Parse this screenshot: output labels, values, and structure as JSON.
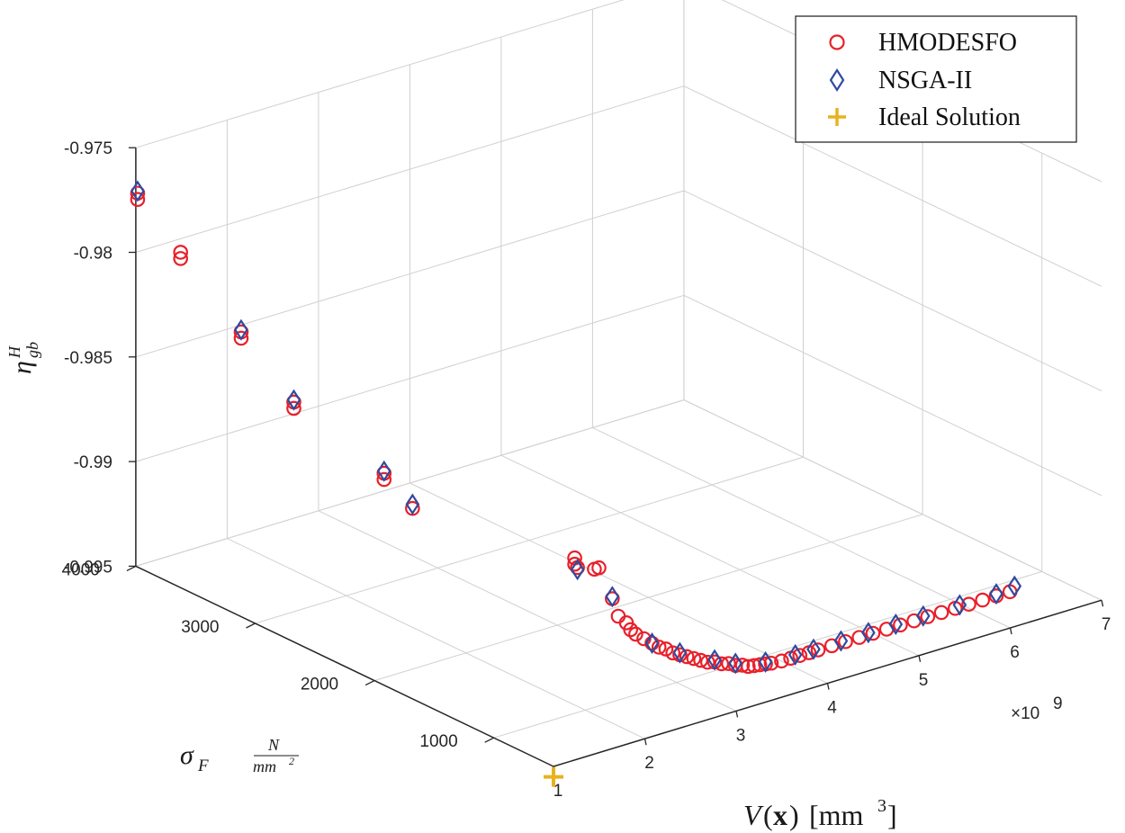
{
  "chart_data": {
    "type": "scatter",
    "projection": "3d",
    "axes": {
      "x": {
        "label_symbol": "V",
        "label_arg": "x",
        "label_unit_base": "[mm",
        "label_unit_exp": "3",
        "label_unit_close": "]",
        "range": [
          1,
          7
        ],
        "ticks": [
          1,
          2,
          3,
          4,
          5,
          6,
          7
        ],
        "tick_labels": [
          "1",
          "2",
          "3",
          "4",
          "5",
          "6",
          "7"
        ],
        "exponent_label": "×10",
        "exponent_power": "9"
      },
      "y": {
        "label_symbol": "σ",
        "label_subscript": "F",
        "label_unit_num": "N",
        "label_unit_den": "mm",
        "label_unit_den_exp": "2",
        "range": [
          500,
          4000
        ],
        "ticks": [
          1000,
          2000,
          3000,
          4000
        ],
        "tick_labels": [
          "1000",
          "2000",
          "3000",
          "4000"
        ]
      },
      "z": {
        "label_symbol": "η",
        "label_subscript": "gb",
        "label_superscript": "H",
        "range": [
          -0.995,
          -0.975
        ],
        "ticks": [
          -0.995,
          -0.99,
          -0.985,
          -0.98,
          -0.975
        ],
        "tick_labels": [
          "-0.995",
          "-0.99",
          "-0.985",
          "-0.98",
          "-0.975"
        ]
      }
    },
    "grid": true,
    "legend_position": "top-right",
    "series": [
      {
        "name": "HMODESFO",
        "marker": "circle",
        "color": "#e8202a",
        "points": [
          [
            1.02,
            4000,
            -0.9772
          ],
          [
            1.02,
            4000,
            -0.9775
          ],
          [
            1.36,
            3900,
            -0.9802
          ],
          [
            1.36,
            3900,
            -0.9805
          ],
          [
            1.5,
            3500,
            -0.9831
          ],
          [
            1.5,
            3500,
            -0.9834
          ],
          [
            1.75,
            3250,
            -0.9861
          ],
          [
            1.75,
            3250,
            -0.9864
          ],
          [
            2.15,
            2800,
            -0.9888
          ],
          [
            2.15,
            2800,
            -0.9891
          ],
          [
            2.2,
            2600,
            -0.99
          ],
          [
            2.8,
            1700,
            -0.9907
          ],
          [
            2.8,
            1700,
            -0.991
          ],
          [
            2.83,
            1700,
            -0.9912
          ],
          [
            2.95,
            1650,
            -0.9913
          ],
          [
            3.0,
            1650,
            -0.9913
          ],
          [
            2.95,
            1500,
            -0.9923
          ],
          [
            2.95,
            1450,
            -0.993
          ],
          [
            3.0,
            1420,
            -0.9933
          ],
          [
            3.02,
            1400,
            -0.9936
          ],
          [
            3.05,
            1380,
            -0.9938
          ],
          [
            3.1,
            1350,
            -0.994
          ],
          [
            3.15,
            1320,
            -0.9942
          ],
          [
            3.2,
            1300,
            -0.9944
          ],
          [
            3.25,
            1280,
            -0.9945
          ],
          [
            3.3,
            1260,
            -0.9947
          ],
          [
            3.35,
            1240,
            -0.9948
          ],
          [
            3.4,
            1220,
            -0.9949
          ],
          [
            3.45,
            1200,
            -0.995
          ],
          [
            3.5,
            1180,
            -0.9951
          ],
          [
            3.55,
            1160,
            -0.9952
          ],
          [
            3.6,
            1140,
            -0.9952
          ],
          [
            3.65,
            1120,
            -0.9953
          ],
          [
            3.7,
            1100,
            -0.9953
          ],
          [
            3.75,
            1080,
            -0.9954
          ],
          [
            3.8,
            1060,
            -0.9954
          ],
          [
            3.85,
            1050,
            -0.9955
          ],
          [
            3.9,
            1040,
            -0.9955
          ],
          [
            3.95,
            1030,
            -0.9955
          ],
          [
            4.0,
            1020,
            -0.9955
          ],
          [
            4.05,
            1010,
            -0.9955
          ],
          [
            4.15,
            1000,
            -0.9955
          ],
          [
            4.25,
            1000,
            -0.9955
          ],
          [
            4.35,
            1000,
            -0.9955
          ],
          [
            4.45,
            1000,
            -0.9955
          ],
          [
            4.55,
            1000,
            -0.9955
          ],
          [
            4.7,
            1000,
            -0.9955
          ],
          [
            4.85,
            1000,
            -0.9955
          ],
          [
            5.0,
            1000,
            -0.9955
          ],
          [
            5.15,
            1000,
            -0.9955
          ],
          [
            5.3,
            1000,
            -0.9955
          ],
          [
            5.45,
            1000,
            -0.9955
          ],
          [
            5.6,
            1000,
            -0.9955
          ],
          [
            5.75,
            1000,
            -0.9955
          ],
          [
            5.9,
            1000,
            -0.9955
          ],
          [
            6.05,
            1000,
            -0.9955
          ],
          [
            6.2,
            1000,
            -0.9955
          ],
          [
            6.35,
            1000,
            -0.9955
          ],
          [
            6.5,
            1000,
            -0.9955
          ],
          [
            6.65,
            1000,
            -0.9955
          ]
        ]
      },
      {
        "name": "NSGA-II",
        "marker": "diamond",
        "color": "#2f4aa0",
        "points": [
          [
            1.02,
            4000,
            -0.9771
          ],
          [
            1.5,
            3500,
            -0.983
          ],
          [
            1.75,
            3250,
            -0.986
          ],
          [
            2.15,
            2800,
            -0.9887
          ],
          [
            2.2,
            2600,
            -0.9898
          ],
          [
            2.83,
            1700,
            -0.9913
          ],
          [
            2.95,
            1500,
            -0.9922
          ],
          [
            3.15,
            1320,
            -0.9942
          ],
          [
            3.35,
            1240,
            -0.9947
          ],
          [
            3.6,
            1140,
            -0.9951
          ],
          [
            3.75,
            1080,
            -0.9953
          ],
          [
            4.0,
            1020,
            -0.9954
          ],
          [
            4.3,
            1000,
            -0.9954
          ],
          [
            4.5,
            1000,
            -0.9954
          ],
          [
            4.8,
            1000,
            -0.9954
          ],
          [
            5.1,
            1000,
            -0.9954
          ],
          [
            5.4,
            1000,
            -0.9954
          ],
          [
            5.7,
            1000,
            -0.9954
          ],
          [
            6.1,
            1000,
            -0.9954
          ],
          [
            6.5,
            1000,
            -0.9954
          ],
          [
            6.7,
            1000,
            -0.9953
          ]
        ]
      },
      {
        "name": "Ideal Solution",
        "marker": "plus",
        "color": "#e8b21f",
        "points": [
          [
            1.0,
            500,
            -0.9955
          ]
        ]
      }
    ]
  }
}
